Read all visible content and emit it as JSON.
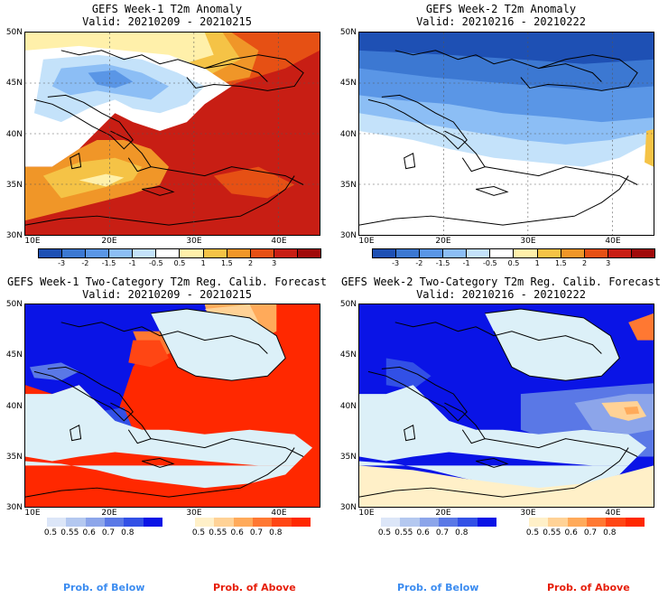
{
  "panels": [
    {
      "title": "GEFS Week-1 T2m Anomaly",
      "valid": "Valid: 20210209 - 20210215"
    },
    {
      "title": "GEFS Week-2 T2m Anomaly",
      "valid": "Valid: 20210216 - 20210222"
    },
    {
      "title": "GEFS Week-1 Two-Category T2m Reg. Calib. Forecast",
      "valid": "Valid: 20210209 - 20210215"
    },
    {
      "title": "GEFS Week-2 Two-Category T2m Reg. Calib. Forecast",
      "valid": "Valid: 20210216 - 20210222"
    }
  ],
  "lat_labels": [
    "50N",
    "45N",
    "40N",
    "35N",
    "30N"
  ],
  "lon_labels": [
    "10E",
    "20E",
    "30E",
    "40E"
  ],
  "anomaly_scale": {
    "labels": [
      "-3",
      "-2",
      "-1.5",
      "-1",
      "-0.5",
      "0.5",
      "1",
      "1.5",
      "2",
      "3"
    ],
    "colors": [
      "#1e50b4",
      "#3c78d2",
      "#5a96e6",
      "#8cbef5",
      "#c4e2fa",
      "#ffffff",
      "#fff0aa",
      "#f5c346",
      "#f09628",
      "#e65014",
      "#c81e14",
      "#a00a0a"
    ]
  },
  "below_scale": {
    "labels": [
      "0.5",
      "0.55",
      "0.6",
      "0.7",
      "0.8"
    ],
    "colors": [
      "#dce6f8",
      "#b4c8f0",
      "#8ca5ea",
      "#5a78e6",
      "#3250e6",
      "#0a14e6"
    ]
  },
  "above_scale": {
    "labels": [
      "0.5",
      "0.55",
      "0.6",
      "0.7",
      "0.8"
    ],
    "colors": [
      "#fff0c8",
      "#ffd296",
      "#ffaa5a",
      "#ff7832",
      "#ff4614",
      "#ff2800"
    ]
  },
  "footer": {
    "below": "Prob. of Below",
    "above": "Prob. of Above",
    "below_color": "#3c8cf0",
    "above_color": "#e61e0a"
  }
}
